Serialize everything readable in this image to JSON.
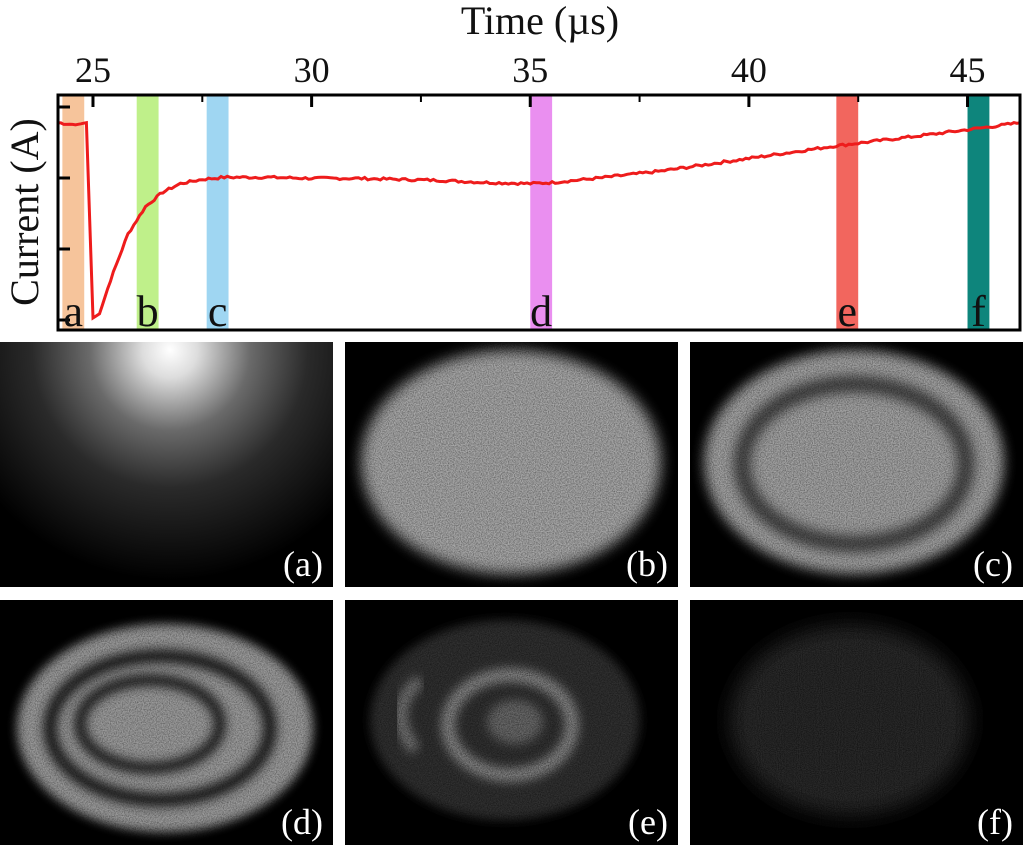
{
  "chart_data": {
    "type": "line",
    "xlabel": "Time (µs)",
    "ylabel": "Current (A)",
    "xlim": [
      24.2,
      46.2
    ],
    "xticks": [
      25,
      30,
      35,
      40,
      45
    ],
    "xtick_labels": [
      "25",
      "30",
      "35",
      "40",
      "45"
    ],
    "yticks_unlabeled": 4,
    "series": [
      {
        "color": "#ee1c1c",
        "x": [
          24.2,
          24.6,
          24.85,
          25.0,
          25.15,
          25.4,
          25.8,
          26.2,
          26.6,
          27.0,
          27.5,
          28.0,
          29.0,
          30.0,
          31.0,
          32.0,
          33.0,
          34.0,
          35.0,
          35.5,
          36.5,
          38.0,
          40.0,
          42.0,
          44.0,
          45.5,
          46.2
        ],
        "y": [
          0.93,
          0.92,
          0.93,
          0.0,
          0.02,
          0.18,
          0.4,
          0.53,
          0.6,
          0.64,
          0.66,
          0.67,
          0.67,
          0.665,
          0.665,
          0.66,
          0.655,
          0.645,
          0.64,
          0.645,
          0.665,
          0.7,
          0.76,
          0.82,
          0.87,
          0.91,
          0.93
        ]
      }
    ],
    "bands": [
      {
        "letter": "a",
        "x0": 24.3,
        "x1": 24.8,
        "color": "#f6c49b"
      },
      {
        "letter": "b",
        "x0": 26.0,
        "x1": 26.5,
        "color": "#bff08a"
      },
      {
        "letter": "c",
        "x0": 27.6,
        "x1": 28.1,
        "color": "#9fd6f2"
      },
      {
        "letter": "d",
        "x0": 35.0,
        "x1": 35.5,
        "color": "#ea8ff0"
      },
      {
        "letter": "e",
        "x0": 42.0,
        "x1": 42.5,
        "color": "#f2665e"
      },
      {
        "letter": "f",
        "x0": 45.0,
        "x1": 45.5,
        "color": "#0e857c"
      }
    ]
  },
  "panels": [
    {
      "label": "(a)",
      "pattern": "glow"
    },
    {
      "label": "(b)",
      "pattern": "filled-ellipse"
    },
    {
      "label": "(c)",
      "pattern": "ellipse-one-ring"
    },
    {
      "label": "(d)",
      "pattern": "ellipse-two-rings"
    },
    {
      "label": "(e)",
      "pattern": "faint-spiral"
    },
    {
      "label": "(f)",
      "pattern": "faint-noise"
    }
  ]
}
